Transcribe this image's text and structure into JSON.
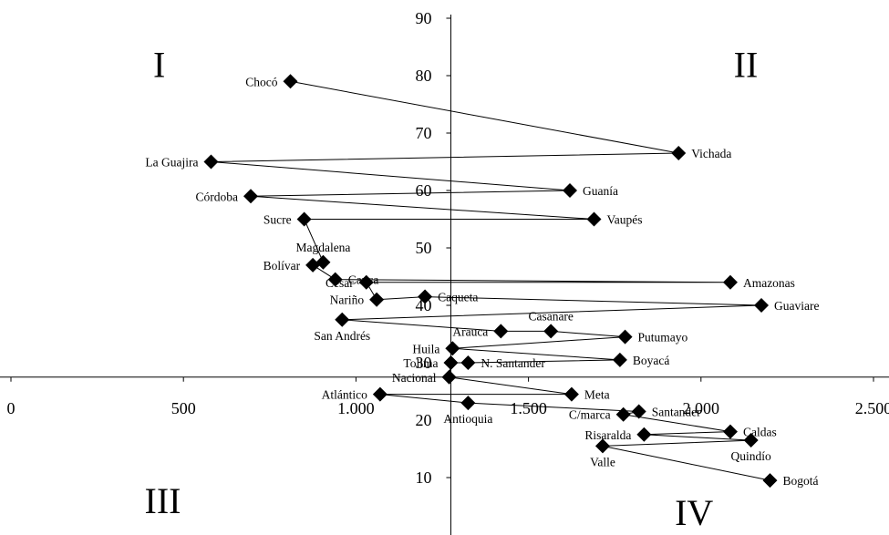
{
  "chart_data": {
    "type": "scatter",
    "connected": true,
    "xlim": [
      0,
      2500
    ],
    "ylim": [
      0,
      90
    ],
    "x_ticks": [
      {
        "value": 0,
        "label": "0"
      },
      {
        "value": 500,
        "label": "500"
      },
      {
        "value": 1000,
        "label": "1.000"
      },
      {
        "value": 1500,
        "label": "1.500"
      },
      {
        "value": 2000,
        "label": "2.000"
      },
      {
        "value": 2500,
        "label": "2.500"
      }
    ],
    "y_ticks": [
      {
        "value": 10,
        "label": "10"
      },
      {
        "value": 20,
        "label": "20"
      },
      {
        "value": 30,
        "label": "30"
      },
      {
        "value": 40,
        "label": "40"
      },
      {
        "value": 50,
        "label": "50"
      },
      {
        "value": 60,
        "label": "60"
      },
      {
        "value": 70,
        "label": "70"
      },
      {
        "value": 80,
        "label": "80"
      },
      {
        "value": 90,
        "label": "90"
      }
    ],
    "axis_cross": {
      "x": 1275,
      "y": 27.5
    },
    "quadrants": [
      {
        "label": "I",
        "x": 430,
        "y": 82
      },
      {
        "label": "II",
        "x": 2130,
        "y": 82
      },
      {
        "label": "III",
        "x": 440,
        "y": 6
      },
      {
        "label": "IV",
        "x": 1980,
        "y": 4
      }
    ],
    "points": [
      {
        "label": "Chocó",
        "x": 810,
        "y": 79,
        "pos": "left"
      },
      {
        "label": "Vichada",
        "x": 1935,
        "y": 66.5,
        "pos": "right"
      },
      {
        "label": "La Guajira",
        "x": 580,
        "y": 65,
        "pos": "left"
      },
      {
        "label": "Guanía",
        "x": 1620,
        "y": 60,
        "pos": "right"
      },
      {
        "label": "Córdoba",
        "x": 695,
        "y": 59,
        "pos": "left"
      },
      {
        "label": "Vaupés",
        "x": 1690,
        "y": 55,
        "pos": "right"
      },
      {
        "label": "Sucre",
        "x": 850,
        "y": 55,
        "pos": "left"
      },
      {
        "label": "Magdalena",
        "x": 905,
        "y": 47.5,
        "pos": "above"
      },
      {
        "label": "Bolívar",
        "x": 875,
        "y": 47,
        "pos": "left"
      },
      {
        "label": "Cauca",
        "x": 940,
        "y": 44.5,
        "pos": "right"
      },
      {
        "label": "Amazonas",
        "x": 2085,
        "y": 44,
        "pos": "right"
      },
      {
        "label": "Cesar",
        "x": 1030,
        "y": 44,
        "pos": "left"
      },
      {
        "label": "Nariño",
        "x": 1060,
        "y": 41,
        "pos": "left"
      },
      {
        "label": "Caqueta",
        "x": 1200,
        "y": 41.5,
        "pos": "right"
      },
      {
        "label": "Guaviare",
        "x": 2175,
        "y": 40,
        "pos": "right"
      },
      {
        "label": "San Andrés",
        "x": 960,
        "y": 37.5,
        "pos": "below"
      },
      {
        "label": "Arauca",
        "x": 1420,
        "y": 35.5,
        "pos": "left"
      },
      {
        "label": "Casanare",
        "x": 1565,
        "y": 35.5,
        "pos": "above"
      },
      {
        "label": "Putumayo",
        "x": 1780,
        "y": 34.5,
        "pos": "right"
      },
      {
        "label": "Huila",
        "x": 1280,
        "y": 32.5,
        "pos": "left"
      },
      {
        "label": "Boyacá",
        "x": 1765,
        "y": 30.5,
        "pos": "right"
      },
      {
        "label": "N. Santander",
        "x": 1325,
        "y": 30,
        "pos": "right"
      },
      {
        "label": "Tolima",
        "x": 1275,
        "y": 30,
        "pos": "left"
      },
      {
        "label": "Nacional",
        "x": 1270,
        "y": 27.5,
        "pos": "left"
      },
      {
        "label": "Meta",
        "x": 1625,
        "y": 24.5,
        "pos": "right"
      },
      {
        "label": "Atlántico",
        "x": 1070,
        "y": 24.5,
        "pos": "left"
      },
      {
        "label": "Antioquia",
        "x": 1325,
        "y": 23,
        "pos": "below"
      },
      {
        "label": "Santander",
        "x": 1820,
        "y": 21.5,
        "pos": "right"
      },
      {
        "label": "C/marca",
        "x": 1775,
        "y": 21,
        "pos": "left"
      },
      {
        "label": "Caldas",
        "x": 2085,
        "y": 18,
        "pos": "right"
      },
      {
        "label": "Risaralda",
        "x": 1835,
        "y": 17.5,
        "pos": "left"
      },
      {
        "label": "Quindío",
        "x": 2145,
        "y": 16.5,
        "pos": "below"
      },
      {
        "label": "Valle",
        "x": 1715,
        "y": 15.5,
        "pos": "below"
      },
      {
        "label": "Bogotá",
        "x": 2200,
        "y": 9.5,
        "pos": "right"
      }
    ]
  }
}
